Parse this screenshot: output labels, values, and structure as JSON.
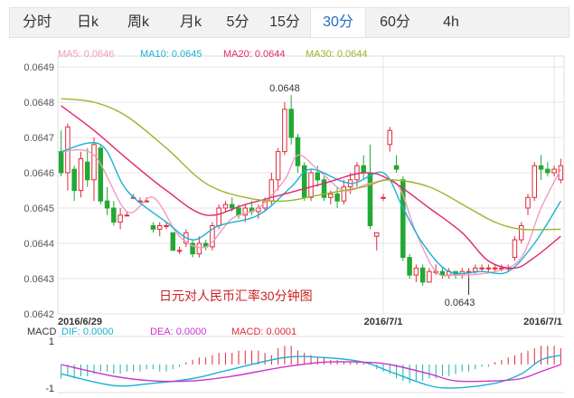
{
  "tabs": [
    {
      "label": "分时",
      "active": false
    },
    {
      "label": "日k",
      "active": false
    },
    {
      "label": "周k",
      "active": false
    },
    {
      "label": "月k",
      "active": false
    },
    {
      "label": "5分",
      "active": false
    },
    {
      "label": "15分",
      "active": false
    },
    {
      "label": "30分",
      "active": true
    },
    {
      "label": "60分",
      "active": false
    },
    {
      "label": "4h",
      "active": false
    }
  ],
  "chart_data": {
    "type": "candlestick",
    "title": "日元对人民币汇率30分钟图",
    "ylim": [
      0.0642,
      0.0649
    ],
    "yticks": [
      "0.0649",
      "0.0648",
      "0.0647",
      "0.0646",
      "0.0645",
      "0.0644",
      "0.0643",
      "0.0642"
    ],
    "xticks": [
      {
        "label": "2016/6/29",
        "index": 0
      },
      {
        "label": "2016/7/1",
        "index": 49
      },
      {
        "label": "2016/7/1",
        "index": 75
      }
    ],
    "annotations": [
      {
        "text": "0.0648",
        "index": 34,
        "value": 0.06482
      },
      {
        "text": "0.0643",
        "index": 62,
        "value": 0.0643
      }
    ],
    "ma_legend": [
      {
        "name": "MA5",
        "value": "0.0646",
        "color": "#f29ac0"
      },
      {
        "name": "MA10",
        "value": "0.0645",
        "color": "#19b3d3"
      },
      {
        "name": "MA20",
        "value": "0.0644",
        "color": "#e0286a"
      },
      {
        "name": "MA30",
        "value": "0.0644",
        "color": "#9bb32b"
      }
    ],
    "colors": {
      "up": "#e0283a",
      "down": "#23a833"
    },
    "candles": [
      [
        0.06466,
        0.06472,
        0.06459,
        0.0646
      ],
      [
        0.0646,
        0.06474,
        0.06455,
        0.06473
      ],
      [
        0.06461,
        0.06462,
        0.06452,
        0.06455
      ],
      [
        0.06455,
        0.06466,
        0.06453,
        0.06464
      ],
      [
        0.06463,
        0.06467,
        0.06456,
        0.06458
      ],
      [
        0.06458,
        0.0647,
        0.06452,
        0.06468
      ],
      [
        0.06467,
        0.06468,
        0.06451,
        0.06452
      ],
      [
        0.06452,
        0.06456,
        0.06448,
        0.0645
      ],
      [
        0.0645,
        0.06452,
        0.06445,
        0.06446
      ],
      [
        0.06446,
        0.0645,
        0.06444,
        0.06448
      ],
      [
        0.06448,
        0.06449,
        0.06448,
        0.06448
      ],
      [
        0.06453,
        0.06454,
        0.06453,
        0.06453
      ],
      [
        0.06452,
        0.06453,
        0.06452,
        0.06452
      ],
      [
        0.06452,
        0.06453,
        0.06452,
        0.06452
      ],
      [
        0.06445,
        0.06446,
        0.06443,
        0.06444
      ],
      [
        0.06444,
        0.06446,
        0.06442,
        0.06445
      ],
      [
        0.06445,
        0.06446,
        0.06444,
        0.06445
      ],
      [
        0.06443,
        0.06443,
        0.06438,
        0.06438
      ],
      [
        0.06438,
        0.06439,
        0.06437,
        0.06438
      ],
      [
        0.0644,
        0.06444,
        0.06439,
        0.06443
      ],
      [
        0.0644,
        0.06441,
        0.06436,
        0.06437
      ],
      [
        0.06437,
        0.06442,
        0.06436,
        0.0644
      ],
      [
        0.0644,
        0.06441,
        0.06438,
        0.06439
      ],
      [
        0.06439,
        0.06446,
        0.06438,
        0.06445
      ],
      [
        0.06445,
        0.06451,
        0.06444,
        0.0645
      ],
      [
        0.0645,
        0.06452,
        0.06449,
        0.06451
      ],
      [
        0.06451,
        0.06453,
        0.06449,
        0.0645
      ],
      [
        0.0645,
        0.06451,
        0.06447,
        0.06448
      ],
      [
        0.06448,
        0.06451,
        0.06446,
        0.0645
      ],
      [
        0.0645,
        0.06452,
        0.06448,
        0.06449
      ],
      [
        0.06449,
        0.06451,
        0.06447,
        0.0645
      ],
      [
        0.0645,
        0.06453,
        0.06449,
        0.06452
      ],
      [
        0.06452,
        0.0646,
        0.06451,
        0.06458
      ],
      [
        0.06458,
        0.06467,
        0.06455,
        0.06466
      ],
      [
        0.06466,
        0.0648,
        0.06465,
        0.06478
      ],
      [
        0.06478,
        0.06482,
        0.06468,
        0.0647
      ],
      [
        0.0647,
        0.06471,
        0.0646,
        0.06462
      ],
      [
        0.06462,
        0.06463,
        0.06452,
        0.06453
      ],
      [
        0.06453,
        0.06461,
        0.06452,
        0.0646
      ],
      [
        0.0646,
        0.06462,
        0.06456,
        0.06458
      ],
      [
        0.06458,
        0.06459,
        0.06452,
        0.06453
      ],
      [
        0.06453,
        0.06455,
        0.06451,
        0.06454
      ],
      [
        0.06454,
        0.06456,
        0.0645,
        0.06452
      ],
      [
        0.06452,
        0.06458,
        0.06451,
        0.06456
      ],
      [
        0.06456,
        0.0646,
        0.06454,
        0.06458
      ],
      [
        0.06458,
        0.06463,
        0.06456,
        0.06462
      ],
      [
        0.06462,
        0.06465,
        0.06458,
        0.0646
      ],
      [
        0.0646,
        0.06468,
        0.06444,
        0.06445
      ],
      [
        0.06442,
        0.06443,
        0.06438,
        0.06443
      ],
      [
        0.06453,
        0.06454,
        0.06452,
        0.06453
      ],
      [
        0.06468,
        0.06473,
        0.06466,
        0.06472
      ],
      [
        0.06462,
        0.06465,
        0.0646,
        0.06461
      ],
      [
        0.06458,
        0.06459,
        0.06435,
        0.06436
      ],
      [
        0.06436,
        0.06437,
        0.0643,
        0.06431
      ],
      [
        0.06431,
        0.06434,
        0.06429,
        0.06433
      ],
      [
        0.06433,
        0.06434,
        0.06428,
        0.06429
      ],
      [
        0.06429,
        0.06433,
        0.06429,
        0.06432
      ],
      [
        0.06432,
        0.06434,
        0.06431,
        0.06432
      ],
      [
        0.06432,
        0.06433,
        0.0643,
        0.06431
      ],
      [
        0.06431,
        0.06433,
        0.0643,
        0.06432
      ],
      [
        0.06432,
        0.06432,
        0.0643,
        0.06431
      ],
      [
        0.06431,
        0.06433,
        0.0643,
        0.06432
      ],
      [
        0.06432,
        0.06433,
        0.06429,
        0.06432
      ],
      [
        0.06432,
        0.06434,
        0.06431,
        0.06433
      ],
      [
        0.06433,
        0.06434,
        0.06432,
        0.06433
      ],
      [
        0.06433,
        0.06434,
        0.06432,
        0.06433
      ],
      [
        0.06433,
        0.06434,
        0.06432,
        0.06433
      ],
      [
        0.06433,
        0.06434,
        0.06432,
        0.06433
      ],
      [
        0.06433,
        0.06434,
        0.06432,
        0.06433
      ],
      [
        0.06436,
        0.06442,
        0.06435,
        0.06441
      ],
      [
        0.06441,
        0.06446,
        0.0644,
        0.06445
      ],
      [
        0.0645,
        0.06454,
        0.06448,
        0.06453
      ],
      [
        0.06453,
        0.06463,
        0.06452,
        0.06462
      ],
      [
        0.06462,
        0.06465,
        0.06458,
        0.06461
      ],
      [
        0.06461,
        0.06463,
        0.06459,
        0.0646
      ],
      [
        0.0646,
        0.06462,
        0.06459,
        0.06461
      ],
      [
        0.06458,
        0.06464,
        0.06457,
        0.06462
      ]
    ],
    "ma_series": [
      {
        "name": "MA5",
        "color": "#f29ac0",
        "points": [
          [
            0,
            0.06466
          ],
          [
            5,
            0.06465
          ],
          [
            10,
            0.06449
          ],
          [
            14,
            0.06453
          ],
          [
            18,
            0.06442
          ],
          [
            22,
            0.06439
          ],
          [
            26,
            0.06447
          ],
          [
            30,
            0.0645
          ],
          [
            34,
            0.06458
          ],
          [
            36,
            0.06465
          ],
          [
            39,
            0.06461
          ],
          [
            43,
            0.06455
          ],
          [
            47,
            0.06457
          ],
          [
            51,
            0.06457
          ],
          [
            54,
            0.06443
          ],
          [
            57,
            0.06432
          ],
          [
            60,
            0.06431
          ],
          [
            66,
            0.06432
          ],
          [
            70,
            0.06436
          ],
          [
            73,
            0.0645
          ],
          [
            76,
            0.06461
          ]
        ]
      },
      {
        "name": "MA10",
        "color": "#19b3d3",
        "points": [
          [
            0,
            0.06466
          ],
          [
            6,
            0.06468
          ],
          [
            10,
            0.06455
          ],
          [
            16,
            0.06446
          ],
          [
            20,
            0.06441
          ],
          [
            24,
            0.06445
          ],
          [
            30,
            0.06448
          ],
          [
            35,
            0.06456
          ],
          [
            38,
            0.06461
          ],
          [
            44,
            0.06457
          ],
          [
            49,
            0.0646
          ],
          [
            52,
            0.0645
          ],
          [
            55,
            0.0644
          ],
          [
            59,
            0.06432
          ],
          [
            64,
            0.06432
          ],
          [
            68,
            0.06432
          ],
          [
            72,
            0.0644
          ],
          [
            76,
            0.06452
          ]
        ]
      },
      {
        "name": "MA20",
        "color": "#e0286a",
        "points": [
          [
            0,
            0.06479
          ],
          [
            5,
            0.06472
          ],
          [
            10,
            0.06464
          ],
          [
            16,
            0.06455
          ],
          [
            22,
            0.06448
          ],
          [
            28,
            0.06451
          ],
          [
            34,
            0.06454
          ],
          [
            40,
            0.06457
          ],
          [
            46,
            0.0646
          ],
          [
            50,
            0.06458
          ],
          [
            56,
            0.0645
          ],
          [
            61,
            0.06443
          ],
          [
            65,
            0.06435
          ],
          [
            69,
            0.06433
          ],
          [
            72,
            0.06436
          ],
          [
            76,
            0.06442
          ]
        ]
      },
      {
        "name": "MA30",
        "color": "#9bb32b",
        "points": [
          [
            0,
            0.06481
          ],
          [
            5,
            0.0648
          ],
          [
            10,
            0.06476
          ],
          [
            16,
            0.06467
          ],
          [
            22,
            0.06457
          ],
          [
            28,
            0.06453
          ],
          [
            34,
            0.06452
          ],
          [
            40,
            0.06454
          ],
          [
            46,
            0.06456
          ],
          [
            50,
            0.06458
          ],
          [
            56,
            0.06456
          ],
          [
            62,
            0.0645
          ],
          [
            66,
            0.06446
          ],
          [
            70,
            0.06444
          ],
          [
            76,
            0.06444
          ]
        ]
      }
    ],
    "macd": {
      "legend": [
        {
          "name": "MACD",
          "value": "",
          "color": "#333333"
        },
        {
          "name": "DIF",
          "value": "0.0000",
          "color": "#19b3d3"
        },
        {
          "name": "DEA",
          "value": "0.0000",
          "color": "#cc33cc"
        },
        {
          "name": "MACD",
          "value": "0.0001",
          "color": "#e0283a"
        }
      ],
      "yticks": [
        "1",
        "-1"
      ],
      "ylim": [
        -1.2,
        1.2
      ],
      "histogram": [
        -0.6,
        -0.5,
        -0.6,
        -0.5,
        -0.5,
        -0.4,
        -0.3,
        -0.3,
        -0.4,
        -0.4,
        -0.3,
        -0.3,
        -0.3,
        -0.2,
        -0.2,
        -0.3,
        -0.3,
        -0.2,
        -0.1,
        0.1,
        0.2,
        0.3,
        0.3,
        0.4,
        0.5,
        0.5,
        0.5,
        0.6,
        0.6,
        0.6,
        0.6,
        0.5,
        0.4,
        0.7,
        0.8,
        0.8,
        0.6,
        0.5,
        0.4,
        0.3,
        0.3,
        0.2,
        0.2,
        0.1,
        0.1,
        0.1,
        0.1,
        0.1,
        -0.2,
        -0.3,
        -0.4,
        -0.6,
        -0.7,
        -0.8,
        -0.7,
        -0.7,
        -0.6,
        -0.6,
        -0.5,
        -0.5,
        -0.4,
        -0.3,
        -0.3,
        -0.2,
        -0.1,
        -0.1,
        0.1,
        0.2,
        0.3,
        0.4,
        0.5,
        0.6,
        0.7,
        0.8,
        0.8,
        0.8,
        0.7
      ],
      "dif": [
        [
          0,
          -0.4
        ],
        [
          8,
          -0.9
        ],
        [
          14,
          -0.8
        ],
        [
          20,
          -0.6
        ],
        [
          26,
          -0.2
        ],
        [
          34,
          0.3
        ],
        [
          40,
          0.3
        ],
        [
          46,
          0.1
        ],
        [
          50,
          -0.3
        ],
        [
          56,
          -0.9
        ],
        [
          60,
          -1.0
        ],
        [
          66,
          -0.8
        ],
        [
          70,
          -0.4
        ],
        [
          73,
          0.2
        ],
        [
          76,
          0.4
        ]
      ],
      "dea": [
        [
          0,
          0.0
        ],
        [
          8,
          -0.5
        ],
        [
          14,
          -0.7
        ],
        [
          20,
          -0.7
        ],
        [
          26,
          -0.5
        ],
        [
          34,
          -0.1
        ],
        [
          40,
          0.1
        ],
        [
          46,
          0.1
        ],
        [
          50,
          0.0
        ],
        [
          56,
          -0.4
        ],
        [
          60,
          -0.7
        ],
        [
          66,
          -0.7
        ],
        [
          70,
          -0.6
        ],
        [
          73,
          -0.3
        ],
        [
          76,
          0.0
        ]
      ]
    }
  }
}
